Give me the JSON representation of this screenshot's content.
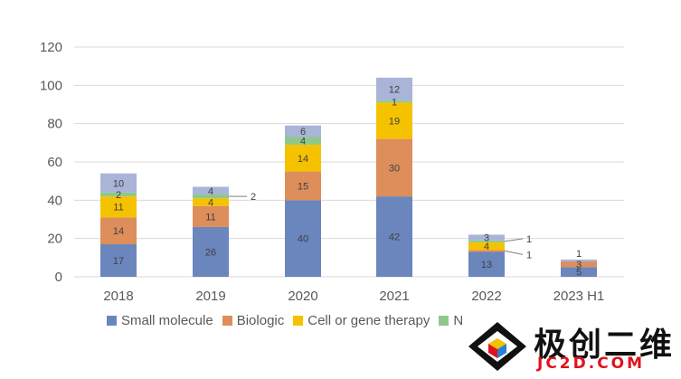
{
  "chart_data": {
    "type": "bar",
    "stacked": true,
    "categories": [
      "2018",
      "2019",
      "2020",
      "2021",
      "2022",
      "2023 H1"
    ],
    "series": [
      {
        "name": "Small molecule",
        "color": "#6a86bd",
        "values": [
          17,
          26,
          40,
          42,
          13,
          5
        ]
      },
      {
        "name": "Biologic",
        "color": "#dd8e5b",
        "values": [
          14,
          11,
          15,
          30,
          1,
          3
        ]
      },
      {
        "name": "Cell or gene therapy",
        "color": "#f5c200",
        "values": [
          11,
          4,
          14,
          19,
          4,
          0
        ]
      },
      {
        "name": "N",
        "color": "#8ec989",
        "values": [
          2,
          2,
          4,
          1,
          1,
          0
        ]
      },
      {
        "name": "",
        "color": "#a9b4d7",
        "values": [
          10,
          4,
          6,
          12,
          3,
          1
        ]
      }
    ],
    "ylim": [
      0,
      120
    ],
    "yticks": [
      0,
      20,
      40,
      60,
      80,
      100,
      120
    ],
    "grid": true,
    "legend_position": "bottom",
    "callouts": [
      {
        "category": "2019",
        "series": "N",
        "label": "2"
      },
      {
        "category": "2022",
        "series": "N",
        "label": "1"
      },
      {
        "category": "2022",
        "series": "Biologic",
        "label": "1"
      },
      {
        "category": "2023 H1",
        "series": "",
        "label": "1"
      }
    ]
  },
  "watermark": {
    "text": "极创二维",
    "url": "JC2D.COM"
  }
}
